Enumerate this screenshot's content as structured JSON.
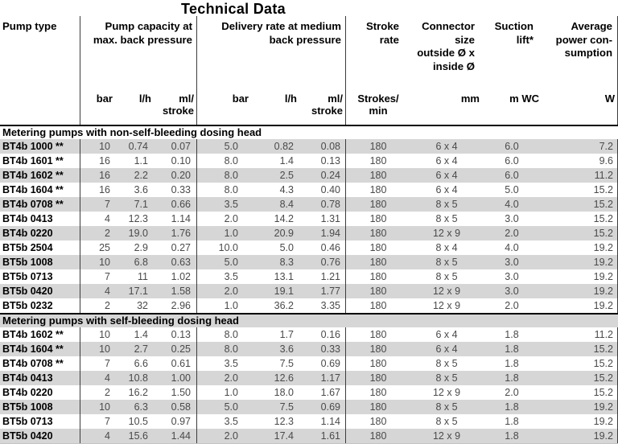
{
  "title": "Technical Data",
  "headers": {
    "pump_type": [
      "Pump type"
    ],
    "capacity": [
      "Pump capacity at",
      "max. back pressure"
    ],
    "delivery": [
      "Delivery rate at medium",
      "back pressure"
    ],
    "stroke_rate": [
      "Stroke",
      "rate"
    ],
    "connector": [
      "Connector",
      "size",
      "outside Ø x",
      "inside Ø"
    ],
    "suction": [
      "Suction",
      "lift*"
    ],
    "power": [
      "Average",
      "power con-",
      "sumption"
    ]
  },
  "units": {
    "bar1": "bar",
    "lh1": "l/h",
    "ml1": [
      "ml/",
      "stroke"
    ],
    "bar2": "bar",
    "lh2": "l/h",
    "ml2": [
      "ml/",
      "stroke"
    ],
    "strokes": [
      "Strokes/",
      "min"
    ],
    "mm": "mm",
    "mwc": "m WC",
    "w": "W"
  },
  "sections": [
    {
      "label": "Metering pumps with non-self-bleeding dosing head",
      "rows": [
        {
          "name": "BT4b 1000 **",
          "values": [
            "10",
            "0.74",
            "0.07",
            "5.0",
            "0.82",
            "0.08",
            "180",
            "6 x 4",
            "6.0",
            "7.2"
          ]
        },
        {
          "name": "BT4b 1601 **",
          "values": [
            "16",
            "1.1",
            "0.10",
            "8.0",
            "1.4",
            "0.13",
            "180",
            "6 x 4",
            "6.0",
            "9.6"
          ]
        },
        {
          "name": "BT4b 1602 **",
          "values": [
            "16",
            "2.2",
            "0.20",
            "8.0",
            "2.5",
            "0.24",
            "180",
            "6 x 4",
            "6.0",
            "11.2"
          ]
        },
        {
          "name": "BT4b 1604 **",
          "values": [
            "16",
            "3.6",
            "0.33",
            "8.0",
            "4.3",
            "0.40",
            "180",
            "6 x 4",
            "5.0",
            "15.2"
          ]
        },
        {
          "name": "BT4b 0708 **",
          "values": [
            "7",
            "7.1",
            "0.66",
            "3.5",
            "8.4",
            "0.78",
            "180",
            "8 x 5",
            "4.0",
            "15.2"
          ]
        },
        {
          "name": "BT4b 0413",
          "values": [
            "4",
            "12.3",
            "1.14",
            "2.0",
            "14.2",
            "1.31",
            "180",
            "8 x 5",
            "3.0",
            "15.2"
          ]
        },
        {
          "name": "BT4b 0220",
          "values": [
            "2",
            "19.0",
            "1.76",
            "1.0",
            "20.9",
            "1.94",
            "180",
            "12 x 9",
            "2.0",
            "15.2"
          ]
        },
        {
          "name": "BT5b 2504",
          "values": [
            "25",
            "2.9",
            "0.27",
            "10.0",
            "5.0",
            "0.46",
            "180",
            "8 x 4",
            "4.0",
            "19.2"
          ]
        },
        {
          "name": "BT5b 1008",
          "values": [
            "10",
            "6.8",
            "0.63",
            "5.0",
            "8.3",
            "0.76",
            "180",
            "8 x 5",
            "3.0",
            "19.2"
          ]
        },
        {
          "name": "BT5b 0713",
          "values": [
            "7",
            "11",
            "1.02",
            "3.5",
            "13.1",
            "1.21",
            "180",
            "8 x 5",
            "3.0",
            "19.2"
          ]
        },
        {
          "name": "BT5b 0420",
          "values": [
            "4",
            "17.1",
            "1.58",
            "2.0",
            "19.1",
            "1.77",
            "180",
            "12 x 9",
            "3.0",
            "19.2"
          ]
        },
        {
          "name": "BT5b 0232",
          "values": [
            "2",
            "32",
            "2.96",
            "1.0",
            "36.2",
            "3.35",
            "180",
            "12 x 9",
            "2.0",
            "19.2"
          ]
        }
      ]
    },
    {
      "label": "Metering pumps with self-bleeding dosing head",
      "rows": [
        {
          "name": "BT4b 1602 **",
          "values": [
            "10",
            "1.4",
            "0.13",
            "8.0",
            "1.7",
            "0.16",
            "180",
            "6 x 4",
            "1.8",
            "11.2"
          ]
        },
        {
          "name": "BT4b 1604 **",
          "values": [
            "10",
            "2.7",
            "0.25",
            "8.0",
            "3.6",
            "0.33",
            "180",
            "6 x 4",
            "1.8",
            "15.2"
          ]
        },
        {
          "name": "BT4b 0708 **",
          "values": [
            "7",
            "6.6",
            "0.61",
            "3.5",
            "7.5",
            "0.69",
            "180",
            "8 x 5",
            "1.8",
            "15.2"
          ]
        },
        {
          "name": "BT4b 0413",
          "values": [
            "4",
            "10.8",
            "1.00",
            "2.0",
            "12.6",
            "1.17",
            "180",
            "8 x 5",
            "1.8",
            "15.2"
          ]
        },
        {
          "name": "BT4b 0220",
          "values": [
            "2",
            "16.2",
            "1.50",
            "1.0",
            "18.0",
            "1.67",
            "180",
            "12 x 9",
            "2.0",
            "15.2"
          ]
        },
        {
          "name": "BT5b 1008",
          "values": [
            "10",
            "6.3",
            "0.58",
            "5.0",
            "7.5",
            "0.69",
            "180",
            "8 x 5",
            "1.8",
            "19.2"
          ]
        },
        {
          "name": "BT5b 0713",
          "values": [
            "7",
            "10.5",
            "0.97",
            "3.5",
            "12.3",
            "1.14",
            "180",
            "8 x 5",
            "1.8",
            "19.2"
          ]
        },
        {
          "name": "BT5b 0420",
          "values": [
            "4",
            "15.6",
            "1.44",
            "2.0",
            "17.4",
            "1.61",
            "180",
            "12 x 9",
            "1.8",
            "19.2"
          ]
        }
      ]
    }
  ],
  "colors": {
    "stripe": "#d6d6d6",
    "line": "#3c3c3c",
    "section_line": "#000000",
    "data_text": "#4a4a4a",
    "heading_text": "#000000",
    "background": "#ffffff"
  }
}
